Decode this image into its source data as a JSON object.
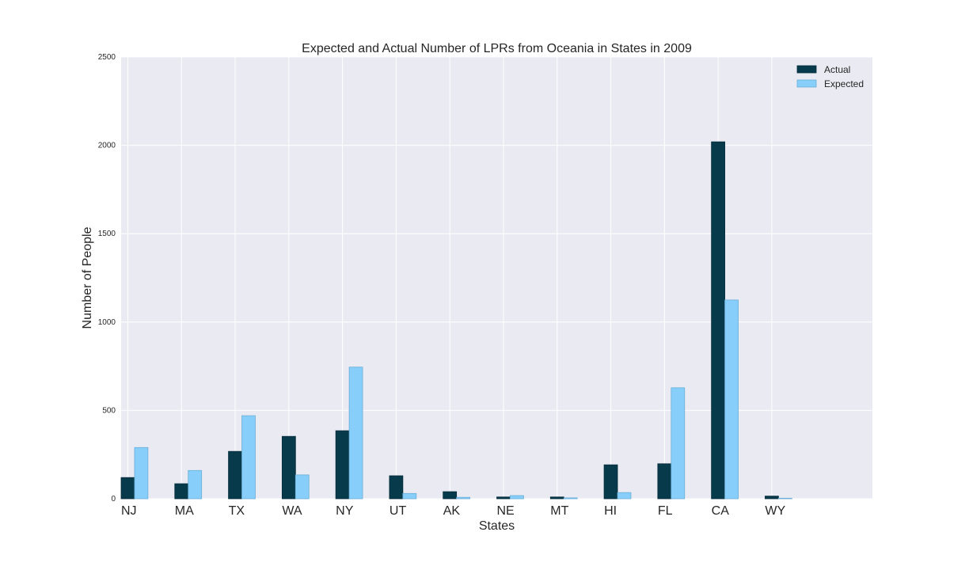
{
  "chart_data": {
    "type": "bar",
    "title": "Expected and Actual Number of LPRs from Oceania in States in 2009",
    "xlabel": "States",
    "ylabel": "Number of People",
    "categories": [
      "NJ",
      "MA",
      "TX",
      "WA",
      "NY",
      "UT",
      "AK",
      "NE",
      "MT",
      "HI",
      "FL",
      "CA",
      "WY"
    ],
    "series": [
      {
        "name": "Actual",
        "color": "#073a4b",
        "values": [
          120,
          85,
          268,
          353,
          385,
          130,
          40,
          10,
          10,
          192,
          198,
          2020,
          15
        ]
      },
      {
        "name": "Expected",
        "color": "#87cefa",
        "values": [
          290,
          160,
          470,
          135,
          745,
          30,
          8,
          18,
          5,
          35,
          628,
          1125,
          3
        ]
      }
    ],
    "ylim": [
      0,
      2500
    ],
    "yticks": [
      "0",
      "500",
      "1000",
      "1500",
      "2000",
      "2500"
    ],
    "grid": true,
    "legend_position": "top-right",
    "background_color": "#eaeaf2"
  }
}
